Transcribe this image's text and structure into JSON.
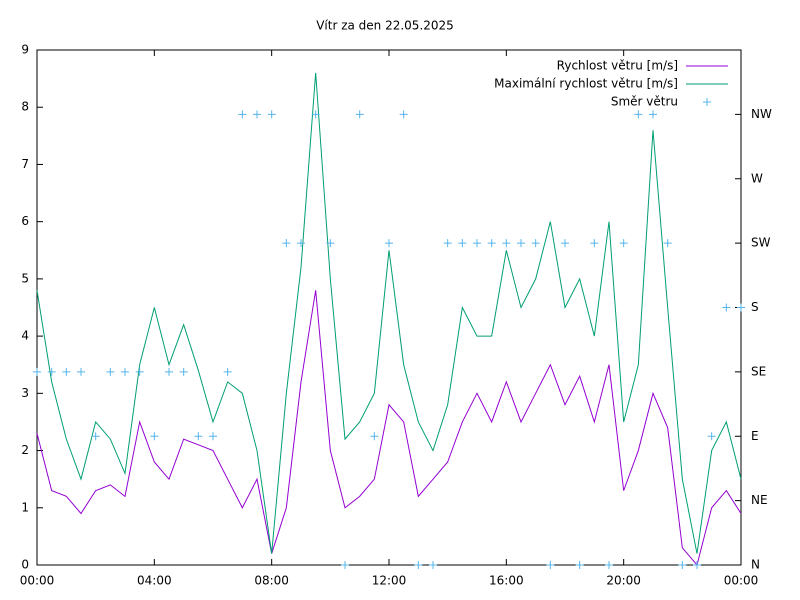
{
  "chart_data": {
    "type": "line",
    "title": "Vítr za den 22.05.2025",
    "x": [
      0,
      0.5,
      1,
      1.5,
      2,
      2.5,
      3,
      3.5,
      4,
      4.5,
      5,
      5.5,
      6,
      6.5,
      7,
      7.5,
      8,
      8.5,
      9,
      9.5,
      10,
      10.5,
      11,
      11.5,
      12,
      12.5,
      13,
      13.5,
      14,
      14.5,
      15,
      15.5,
      16,
      16.5,
      17,
      17.5,
      18,
      18.5,
      19,
      19.5,
      20,
      20.5,
      21,
      21.5,
      22,
      22.5,
      23,
      23.5,
      24
    ],
    "series": [
      {
        "name": "Rychlost větru [m/s]",
        "color": "#9400d3",
        "style": "line",
        "values": [
          2.3,
          1.3,
          1.2,
          0.9,
          1.3,
          1.4,
          1.2,
          2.5,
          1.8,
          1.5,
          2.2,
          2.1,
          2.0,
          1.5,
          1.0,
          1.5,
          0.2,
          1.0,
          3.2,
          4.8,
          2.0,
          1.0,
          1.2,
          1.5,
          2.8,
          2.5,
          1.2,
          1.5,
          1.8,
          2.5,
          3.0,
          2.5,
          3.2,
          2.5,
          3.0,
          3.5,
          2.8,
          3.3,
          2.5,
          3.5,
          1.3,
          2.0,
          3.0,
          2.4,
          0.3,
          0.0,
          1.0,
          1.3,
          0.9
        ]
      },
      {
        "name": "Maximální rychlost větru [m/s]",
        "color": "#009e73",
        "style": "line",
        "values": [
          4.8,
          3.2,
          2.2,
          1.5,
          2.5,
          2.2,
          1.6,
          3.5,
          4.5,
          3.5,
          4.2,
          3.4,
          2.5,
          3.2,
          3.0,
          2.0,
          0.2,
          3.0,
          5.2,
          8.6,
          5.0,
          2.2,
          2.5,
          3.0,
          5.5,
          3.5,
          2.5,
          2.0,
          2.8,
          4.5,
          4.0,
          4.0,
          5.5,
          4.5,
          5.0,
          6.0,
          4.5,
          5.0,
          4.0,
          6.0,
          2.5,
          3.5,
          7.6,
          4.5,
          1.5,
          0.2,
          2.0,
          2.5,
          1.5
        ]
      },
      {
        "name": "Směr větru",
        "color": "#56b4e9",
        "style": "points",
        "axis": "y2",
        "values": [
          3,
          3,
          3,
          3,
          2,
          3,
          3,
          3,
          2,
          3,
          3,
          2,
          2,
          3,
          7,
          7,
          7,
          5,
          5,
          7,
          5,
          0,
          7,
          2,
          5,
          7,
          0,
          0,
          5,
          5,
          5,
          5,
          5,
          5,
          5,
          0,
          5,
          0,
          5,
          0,
          5,
          7,
          7,
          5,
          0,
          0,
          2,
          4,
          4
        ]
      }
    ],
    "xlim": [
      0,
      24
    ],
    "xticks": [
      {
        "value": 0,
        "label": "00:00"
      },
      {
        "value": 4,
        "label": "04:00"
      },
      {
        "value": 8,
        "label": "08:00"
      },
      {
        "value": 12,
        "label": "12:00"
      },
      {
        "value": 16,
        "label": "16:00"
      },
      {
        "value": 20,
        "label": "20:00"
      },
      {
        "value": 24,
        "label": "00:00"
      }
    ],
    "ylim": [
      0,
      9
    ],
    "yticks": [
      0,
      1,
      2,
      3,
      4,
      5,
      6,
      7,
      8,
      9
    ],
    "y2lim": [
      0,
      8
    ],
    "y2ticks": [
      {
        "value": 0,
        "label": "N"
      },
      {
        "value": 1,
        "label": "NE"
      },
      {
        "value": 2,
        "label": "E"
      },
      {
        "value": 3,
        "label": "SE"
      },
      {
        "value": 4,
        "label": "S"
      },
      {
        "value": 5,
        "label": "SW"
      },
      {
        "value": 6,
        "label": "W"
      },
      {
        "value": 7,
        "label": "NW"
      }
    ],
    "legend": "top-right",
    "grid": false
  }
}
